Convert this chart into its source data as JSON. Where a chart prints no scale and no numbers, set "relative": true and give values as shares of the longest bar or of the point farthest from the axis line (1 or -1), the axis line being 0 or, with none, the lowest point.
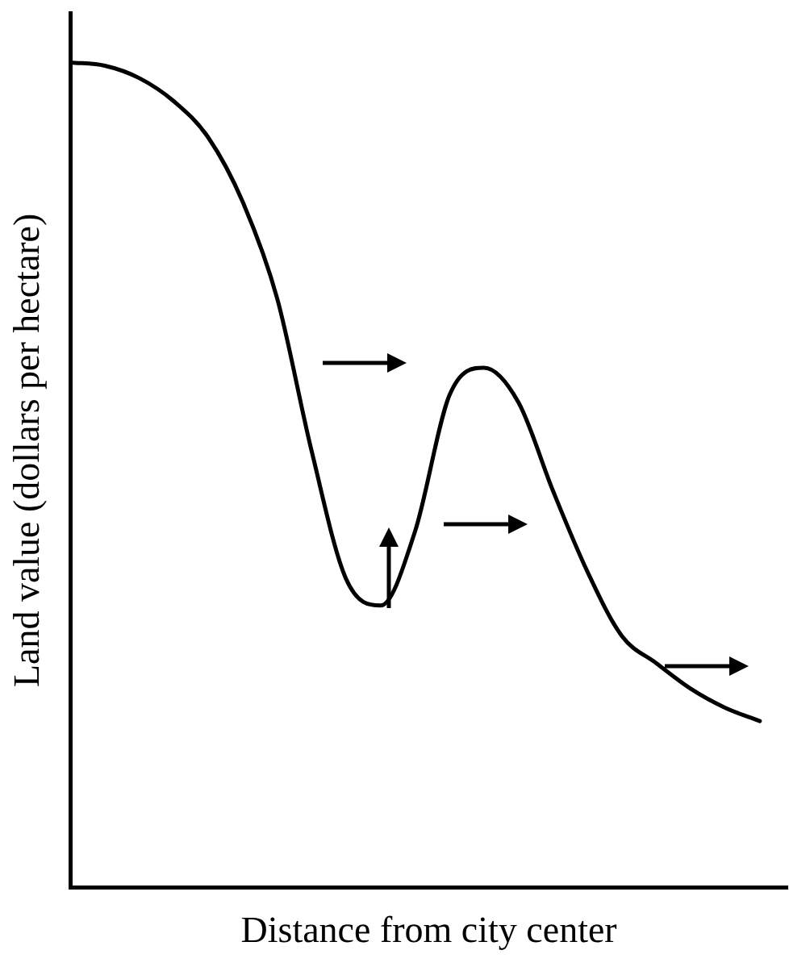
{
  "chart_data": {
    "type": "line",
    "relative": true,
    "xlabel": "Distance from city center",
    "ylabel": "Land value (dollars per hectare)",
    "categories": [
      null,
      null,
      null,
      null,
      null,
      null,
      null,
      null,
      null,
      null,
      null,
      null,
      null,
      null,
      null,
      null,
      null,
      null,
      null,
      null,
      null
    ],
    "series": [
      {
        "color": "#000000",
        "values": [
          1.0,
          0.996,
          0.981,
          0.953,
          0.909,
          0.831,
          0.714,
          0.529,
          0.374,
          0.342,
          0.432,
          0.597,
          0.63,
          0.588,
          0.481,
          0.383,
          0.305,
          0.272,
          0.241,
          0.218,
          0.202
        ]
      }
    ],
    "grid": false,
    "legend": false,
    "marker": "none",
    "line_style": "solid"
  }
}
